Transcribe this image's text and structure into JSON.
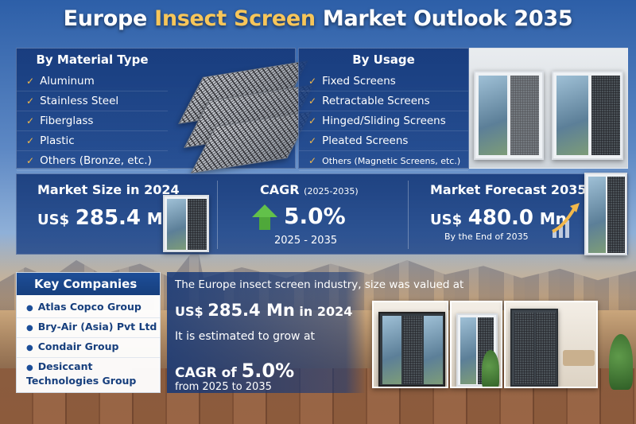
{
  "title": {
    "part1": "Europe ",
    "accent": "Insect Screen",
    "part2": " Market Outlook 2035"
  },
  "material": {
    "heading": "By Material Type",
    "items": [
      "Aluminum",
      "Stainless Steel",
      "Fiberglass",
      "Plastic",
      "Others (Bronze, etc.)"
    ]
  },
  "usage": {
    "heading": "By Usage",
    "items": [
      "Fixed Screens",
      "Retractable Screens",
      "Hinged/Sliding Screens",
      "Pleated Screens",
      "Others (Magnetic Screens, etc.)"
    ]
  },
  "stats": {
    "market_size": {
      "label": "Market Size in 2024",
      "prefix": "US$",
      "value": "285.4",
      "unit": "Mn"
    },
    "cagr": {
      "label": "CAGR",
      "sub": "(2025-2035)",
      "value": "5.0%",
      "range": "2025 - 2035"
    },
    "forecast": {
      "label": "Market Forecast 2035",
      "prefix": "US$",
      "value": "480.0",
      "unit": "Mn",
      "foot": "By the End of 2035"
    }
  },
  "key_companies": {
    "heading": "Key Companies",
    "items": [
      "Atlas Copco Group",
      "Bry-Air (Asia) Pvt Ltd",
      "Condair Group",
      "Desiccant Technologies Group"
    ]
  },
  "summary": {
    "line1": "The Europe insect screen industry, size was valued at",
    "value_prefix": "US$ ",
    "value": "285.4 Mn",
    "value_suffix": " in 2024",
    "line3": "It is estimated to grow at",
    "cagr_prefix": "CAGR of ",
    "cagr_value": "5.0%",
    "line5": "from 2025 to 2035"
  },
  "colors": {
    "accent": "#f7c65a",
    "check": "#f2b84b",
    "panel": "#1d4e98",
    "growth": "#62c14a"
  },
  "icons": {
    "check": "checkmark-icon",
    "bullet": "bullet-icon",
    "growth": "up-arrow-icon",
    "trend": "trend-arrow-icon"
  }
}
